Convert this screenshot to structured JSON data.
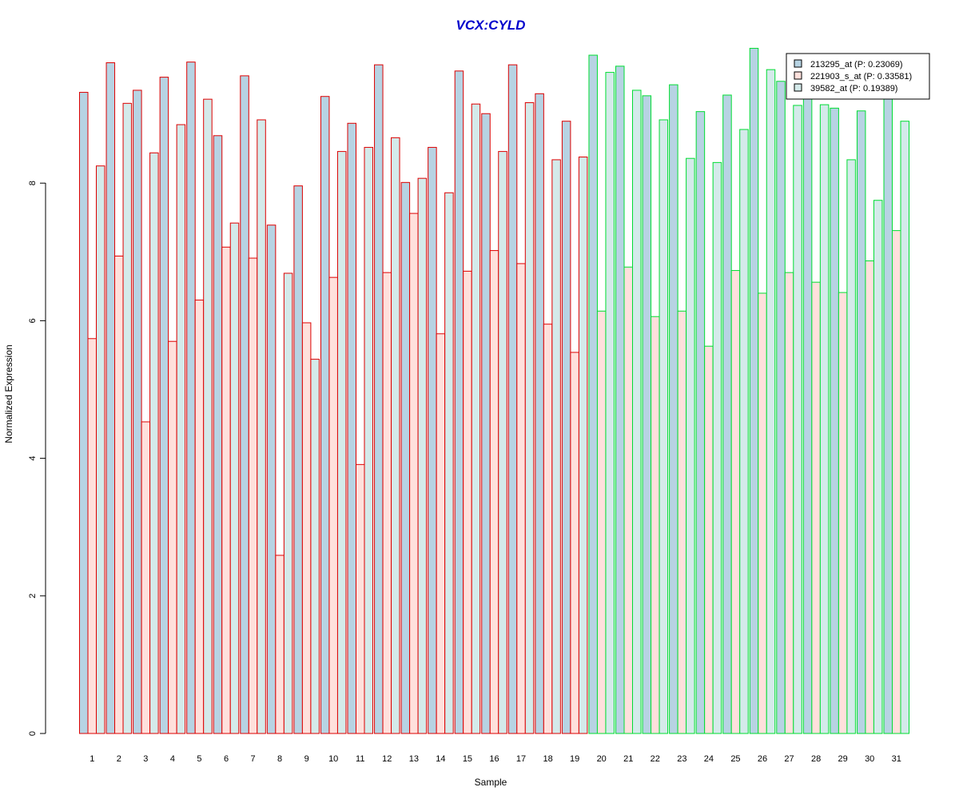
{
  "chart_data": {
    "type": "bar",
    "title": "VCX:CYLD",
    "xlabel": "Sample",
    "ylabel": "Normalized Expression",
    "ylim": [
      0,
      10
    ],
    "yticks": [
      0,
      2,
      4,
      6,
      8
    ],
    "grid": false,
    "legend_position": "top-right",
    "categories": [
      "1",
      "2",
      "3",
      "4",
      "5",
      "6",
      "7",
      "8",
      "9",
      "10",
      "11",
      "12",
      "13",
      "14",
      "15",
      "16",
      "17",
      "18",
      "19",
      "20",
      "21",
      "22",
      "23",
      "24",
      "25",
      "26",
      "27",
      "28",
      "29",
      "30",
      "31"
    ],
    "group_a_count": 19,
    "group_colors": {
      "group_a_border": "#dd0000",
      "group_b_border": "#00dd33"
    },
    "series": [
      {
        "name": "213295_at (P: 0.23069)",
        "fill": "#b7d3e3",
        "values": [
          9.32,
          9.75,
          9.35,
          9.54,
          9.76,
          8.69,
          9.56,
          7.39,
          7.96,
          9.26,
          8.87,
          9.72,
          8.01,
          8.52,
          9.63,
          9.01,
          9.72,
          9.3,
          8.9,
          9.86,
          9.7,
          9.27,
          9.43,
          9.04,
          9.28,
          9.96,
          9.48,
          9.25,
          9.09,
          9.05,
          9.3
        ]
      },
      {
        "name": "221903_s_at (P: 0.33581)",
        "fill": "#ffe0dc",
        "values": [
          5.74,
          6.94,
          4.53,
          5.7,
          6.3,
          7.07,
          6.91,
          2.59,
          5.97,
          6.63,
          3.91,
          6.7,
          7.56,
          5.81,
          6.72,
          7.02,
          6.83,
          5.95,
          5.54,
          6.14,
          6.78,
          6.06,
          6.14,
          5.63,
          6.73,
          6.4,
          6.7,
          6.56,
          6.41,
          6.87,
          7.31
        ]
      },
      {
        "name": "39582_at (P: 0.19389)",
        "fill": "#d4eaea",
        "values": [
          8.25,
          9.16,
          8.44,
          8.85,
          9.22,
          7.42,
          8.92,
          6.69,
          5.44,
          8.46,
          8.52,
          8.66,
          8.07,
          7.86,
          9.15,
          8.46,
          9.17,
          8.34,
          8.38,
          9.61,
          9.35,
          8.92,
          8.36,
          8.3,
          8.78,
          9.65,
          9.13,
          9.14,
          8.34,
          7.75,
          8.9
        ]
      }
    ]
  }
}
